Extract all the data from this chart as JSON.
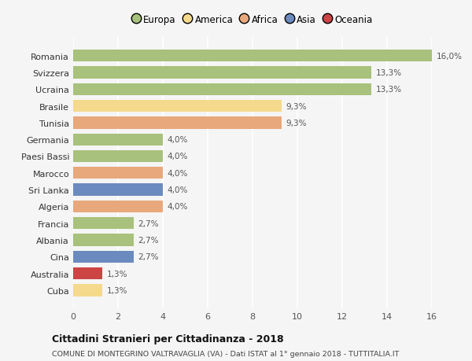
{
  "categories": [
    "Romania",
    "Svizzera",
    "Ucraina",
    "Brasile",
    "Tunisia",
    "Germania",
    "Paesi Bassi",
    "Marocco",
    "Sri Lanka",
    "Algeria",
    "Francia",
    "Albania",
    "Cina",
    "Australia",
    "Cuba"
  ],
  "values": [
    16.0,
    13.3,
    13.3,
    9.3,
    9.3,
    4.0,
    4.0,
    4.0,
    4.0,
    4.0,
    2.7,
    2.7,
    2.7,
    1.3,
    1.3
  ],
  "labels": [
    "16,0%",
    "13,3%",
    "13,3%",
    "9,3%",
    "9,3%",
    "4,0%",
    "4,0%",
    "4,0%",
    "4,0%",
    "4,0%",
    "2,7%",
    "2,7%",
    "2,7%",
    "1,3%",
    "1,3%"
  ],
  "colors": [
    "#a8c17c",
    "#a8c17c",
    "#a8c17c",
    "#f5d98c",
    "#e8a87c",
    "#a8c17c",
    "#a8c17c",
    "#e8a87c",
    "#6b8bbf",
    "#e8a87c",
    "#a8c17c",
    "#a8c17c",
    "#6b8bbf",
    "#cc4444",
    "#f5d98c"
  ],
  "legend_labels": [
    "Europa",
    "America",
    "Africa",
    "Asia",
    "Oceania"
  ],
  "legend_colors": [
    "#a8c17c",
    "#f5d98c",
    "#e8a87c",
    "#6b8bbf",
    "#cc4444"
  ],
  "title": "Cittadini Stranieri per Cittadinanza - 2018",
  "subtitle": "COMUNE DI MONTEGRINO VALTRAVAGLIA (VA) - Dati ISTAT al 1° gennaio 2018 - TUTTITALIA.IT",
  "xlim": [
    0,
    16
  ],
  "xticks": [
    0,
    2,
    4,
    6,
    8,
    10,
    12,
    14,
    16
  ],
  "background_color": "#f5f5f5",
  "grid_color": "#ffffff",
  "bar_height": 0.72
}
